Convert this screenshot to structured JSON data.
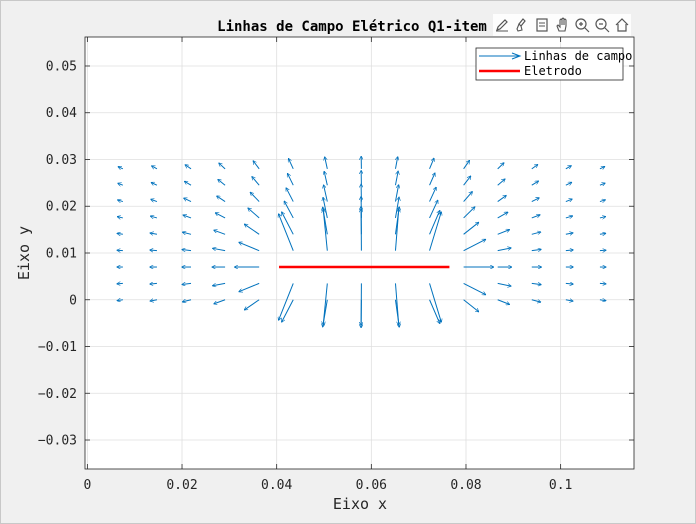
{
  "chart_data": {
    "type": "quiver",
    "title": "Linhas de Campo Elétrico Q1-item",
    "xlabel": "Eixo x",
    "ylabel": "Eixo y",
    "xlim": [
      -0.0005,
      0.1155
    ],
    "ylim": [
      -0.0362,
      0.0562
    ],
    "xticks": [
      0,
      0.02,
      0.04,
      0.06,
      0.08,
      0.1
    ],
    "xtick_labels": [
      "0",
      "0.02",
      "0.04",
      "0.06",
      "0.08",
      "0.1"
    ],
    "yticks": [
      -0.03,
      -0.02,
      -0.01,
      0,
      0.01,
      0.02,
      0.03,
      0.04,
      0.05
    ],
    "ytick_labels": [
      "−0.03",
      "−0.02",
      "−0.01",
      "0",
      "0.01",
      "0.02",
      "0.03",
      "0.04",
      "0.05"
    ],
    "grid": true,
    "legend_position": "top-right",
    "series": [
      {
        "name": "Linhas de campo",
        "color": "#0072bd",
        "kind": "quiver"
      },
      {
        "name": "Eletrodo",
        "color": "#ff0000",
        "kind": "line"
      }
    ],
    "electrode": {
      "x": [
        0.0405,
        0.0765
      ],
      "y": [
        0.007,
        0.007
      ]
    },
    "grid_x": [
      0.0075,
      0.0147,
      0.0219,
      0.0291,
      0.0363,
      0.0435,
      0.0507,
      0.0579,
      0.0651,
      0.0723,
      0.0795,
      0.0867,
      0.0939,
      0.1011,
      0.1083
    ],
    "grid_y": [
      0.0,
      0.0035,
      0.007,
      0.0105,
      0.014,
      0.0175,
      0.021,
      0.0245,
      0.028
    ],
    "field_source": {
      "x0": 0.0405,
      "x1": 0.0765,
      "y": 0.007
    }
  },
  "toolbar": {
    "icons": [
      "edit-icon",
      "brush-icon",
      "datatip-icon",
      "pan-icon",
      "zoom-in-icon",
      "zoom-out-icon",
      "home-icon"
    ]
  }
}
